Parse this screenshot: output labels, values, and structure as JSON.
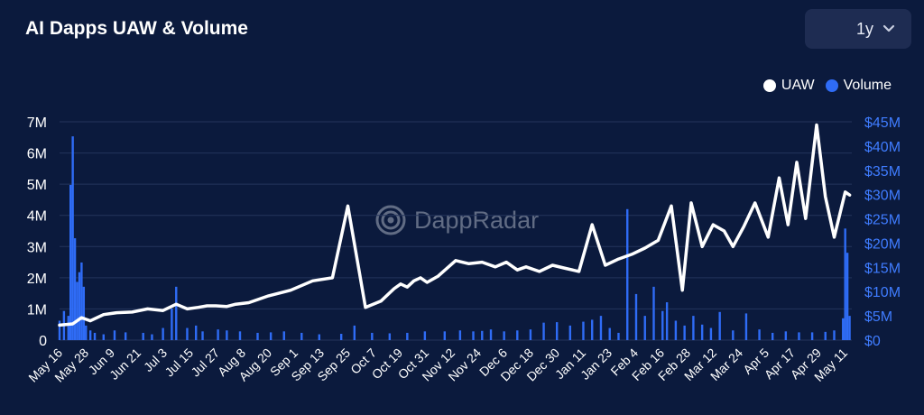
{
  "header": {
    "title": "AI Dapps UAW & Volume"
  },
  "range_selector": {
    "label": "1y",
    "icon": "chevron-down-icon"
  },
  "legend": [
    {
      "label": "UAW",
      "color": "#ffffff"
    },
    {
      "label": "Volume",
      "color": "#2f6cf6"
    }
  ],
  "watermark": {
    "text": "DappRadar",
    "icon": "dappradar-logo-icon"
  },
  "colors": {
    "background": "#0b1a3d",
    "uaw": "#ffffff",
    "volume": "#2f6cf6",
    "grid": "#24345c",
    "axis_left": "#ffffff",
    "axis_right": "#3f7cff"
  },
  "chart_data": {
    "type": "bar",
    "title": "AI Dapps UAW & Volume",
    "x_tick_labels": [
      "May 16",
      "May 28",
      "Jun 9",
      "Jun 21",
      "Jul 3",
      "Jul 15",
      "Jul 27",
      "Aug 8",
      "Aug 20",
      "Sep 1",
      "Sep 13",
      "Sep 25",
      "Oct 7",
      "Oct 19",
      "Oct 31",
      "Nov 12",
      "Nov 24",
      "Dec 6",
      "Dec 18",
      "Dec 30",
      "Jan 11",
      "Jan 23",
      "Feb 4",
      "Feb 16",
      "Feb 28",
      "Mar 12",
      "Mar 24",
      "Apr 5",
      "Apr 17",
      "Apr 29",
      "May 11"
    ],
    "y_left": {
      "label": "UAW",
      "ticks": [
        "0",
        "1M",
        "2M",
        "3M",
        "4M",
        "5M",
        "6M",
        "7M"
      ],
      "lim": [
        0,
        7000000
      ]
    },
    "y_right": {
      "label": "Volume",
      "ticks": [
        "$0",
        "$5M",
        "$10M",
        "$15M",
        "$20M",
        "$25M",
        "$30M",
        "$35M",
        "$40M",
        "$45M"
      ],
      "lim": [
        0,
        45000000
      ]
    },
    "grid": true,
    "legend_position": "top-right",
    "series": [
      {
        "name": "UAW",
        "type": "line",
        "x_day": [
          0,
          6,
          10,
          14,
          20,
          26,
          33,
          40,
          47,
          53,
          58,
          63,
          67,
          71,
          76,
          80,
          86,
          95,
          105,
          115,
          124,
          131,
          139,
          146,
          152,
          155,
          158,
          161,
          164,
          167,
          172,
          180,
          186,
          192,
          198,
          203,
          208,
          212,
          218,
          224,
          230,
          236,
          242,
          248,
          254,
          260,
          266,
          272,
          278,
          283,
          287,
          292,
          297,
          302,
          306,
          311,
          316,
          322,
          327,
          331,
          335,
          339,
          344,
          348,
          352,
          357,
          359
        ],
        "values": [
          480000,
          520000,
          720000,
          620000,
          820000,
          880000,
          900000,
          1000000,
          950000,
          1150000,
          1000000,
          1050000,
          1100000,
          1100000,
          1080000,
          1150000,
          1200000,
          1420000,
          1600000,
          1900000,
          2000000,
          4300000,
          1050000,
          1250000,
          1650000,
          1800000,
          1700000,
          1900000,
          2000000,
          1850000,
          2050000,
          2550000,
          2450000,
          2500000,
          2350000,
          2500000,
          2250000,
          2350000,
          2200000,
          2400000,
          2300000,
          2200000,
          3700000,
          2400000,
          2600000,
          2750000,
          2950000,
          3200000,
          4300000,
          1600000,
          4400000,
          3000000,
          3700000,
          3500000,
          3000000,
          3650000,
          4400000,
          3300000,
          5200000,
          3700000,
          5700000,
          3900000,
          6900000,
          4600000,
          3300000,
          4750000,
          4650000
        ]
      },
      {
        "name": "Volume",
        "type": "bar",
        "x_day": [
          0,
          2,
          4,
          5,
          6,
          7,
          8,
          9,
          10,
          11,
          12,
          14,
          16,
          20,
          25,
          30,
          38,
          42,
          47,
          51,
          53,
          58,
          62,
          65,
          72,
          76,
          82,
          90,
          96,
          102,
          110,
          118,
          128,
          134,
          142,
          150,
          158,
          166,
          175,
          182,
          188,
          192,
          196,
          202,
          208,
          214,
          220,
          226,
          232,
          238,
          242,
          246,
          250,
          254,
          258,
          262,
          266,
          270,
          274,
          276,
          280,
          284,
          288,
          292,
          296,
          300,
          306,
          312,
          318,
          324,
          330,
          336,
          342,
          348,
          352,
          356,
          357,
          358,
          359
        ],
        "values": [
          4000000,
          6000000,
          5000000,
          32000000,
          42000000,
          21000000,
          12000000,
          14000000,
          16000000,
          11000000,
          3000000,
          2000000,
          1500000,
          1200000,
          2000000,
          1600000,
          1500000,
          1200000,
          2500000,
          6500000,
          11000000,
          2500000,
          3000000,
          1800000,
          2200000,
          2000000,
          1800000,
          1500000,
          1600000,
          1800000,
          1500000,
          1200000,
          1300000,
          3000000,
          1500000,
          1400000,
          1500000,
          1800000,
          1800000,
          2000000,
          1800000,
          1900000,
          2200000,
          1800000,
          2000000,
          2200000,
          3600000,
          3700000,
          3000000,
          3800000,
          4200000,
          5000000,
          2500000,
          1500000,
          27000000,
          9500000,
          5000000,
          11000000,
          6000000,
          7800000,
          4000000,
          3000000,
          5000000,
          3200000,
          2500000,
          5800000,
          2000000,
          5500000,
          2200000,
          1500000,
          1800000,
          1600000,
          1600000,
          1700000,
          2000000,
          4500000,
          23000000,
          18000000,
          5000000
        ]
      }
    ]
  }
}
